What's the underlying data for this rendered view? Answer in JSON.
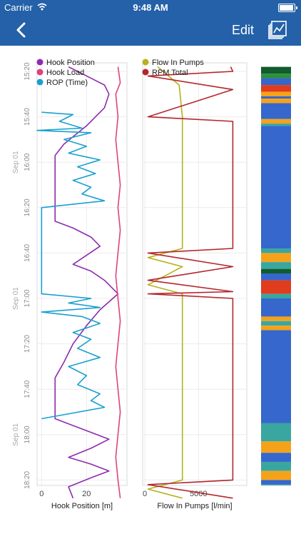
{
  "status_bar": {
    "carrier": "Carrier",
    "time": "9:48 AM",
    "battery_level": 0.95
  },
  "nav": {
    "back_icon": "chevron-left-icon",
    "edit_label": "Edit",
    "chart_icon": "chart-icon"
  },
  "colors": {
    "nav_bg": "#2461a8",
    "hook_position": "#8e2bb0",
    "hook_load": "#e0417f",
    "rop": "#1aa0cf",
    "flow_in": "#b5b21e",
    "rpm_total": "#b3262e"
  },
  "time_axis": {
    "ticks": [
      "15:20",
      "15:40",
      "16:00",
      "16:20",
      "16:40",
      "17:00",
      "17:20",
      "17:40",
      "18:00",
      "18:20"
    ],
    "date_labels": [
      {
        "text": "Sep 01",
        "at": "16:00"
      },
      {
        "text": "Sep 01",
        "at": "17:00"
      },
      {
        "text": "Sep 01",
        "at": "18:00"
      }
    ]
  },
  "chart_data": [
    {
      "type": "line",
      "xlabel": "Hook Position [m]",
      "xticks": [
        0,
        20
      ],
      "xlim": [
        -2,
        38
      ],
      "legend": [
        "Hook Position",
        "Hook Load",
        "ROP (Time)"
      ],
      "series": [
        {
          "name": "Hook Position",
          "points": [
            [
              12,
              "15:18"
            ],
            [
              28,
              "15:26"
            ],
            [
              30,
              "15:30"
            ],
            [
              28,
              "15:36"
            ],
            [
              24,
              "15:40"
            ],
            [
              20,
              "15:44"
            ],
            [
              15,
              "15:48"
            ],
            [
              10,
              "15:52"
            ],
            [
              6,
              "15:57"
            ],
            [
              6,
              "16:20"
            ],
            [
              6,
              "16:26"
            ],
            [
              14,
              "16:29"
            ],
            [
              22,
              "16:33"
            ],
            [
              26,
              "16:37"
            ],
            [
              20,
              "16:41"
            ],
            [
              14,
              "16:45"
            ],
            [
              22,
              "16:48"
            ],
            [
              28,
              "16:52"
            ],
            [
              34,
              "16:58"
            ],
            [
              26,
              "17:05"
            ],
            [
              20,
              "17:12"
            ],
            [
              14,
              "17:20"
            ],
            [
              10,
              "17:28"
            ],
            [
              6,
              "17:35"
            ],
            [
              6,
              "17:53"
            ],
            [
              14,
              "17:56"
            ],
            [
              22,
              "17:59"
            ],
            [
              30,
              "18:02"
            ],
            [
              22,
              "18:06"
            ],
            [
              12,
              "18:10"
            ],
            [
              22,
              "18:13"
            ],
            [
              30,
              "18:16"
            ],
            [
              22,
              "18:19"
            ],
            [
              12,
              "18:23"
            ],
            [
              14,
              "18:28"
            ]
          ]
        },
        {
          "name": "Hook Load",
          "points": [
            [
              34,
              "15:18"
            ],
            [
              35,
              "15:25"
            ],
            [
              33,
              "15:30"
            ],
            [
              34,
              "15:40"
            ],
            [
              33,
              "15:50"
            ],
            [
              34,
              "16:00"
            ],
            [
              35,
              "16:10"
            ],
            [
              34,
              "16:20"
            ],
            [
              35,
              "16:30"
            ],
            [
              34,
              "16:40"
            ],
            [
              33,
              "16:50"
            ],
            [
              34,
              "17:00"
            ],
            [
              35,
              "17:10"
            ],
            [
              34,
              "17:20"
            ],
            [
              33,
              "17:30"
            ],
            [
              34,
              "17:40"
            ],
            [
              35,
              "17:50"
            ],
            [
              34,
              "18:00"
            ],
            [
              33,
              "18:10"
            ],
            [
              34,
              "18:20"
            ],
            [
              35,
              "18:28"
            ]
          ]
        },
        {
          "name": "ROP (Time)",
          "points": [
            [
              0,
              "15:38"
            ],
            [
              14,
              "15:39"
            ],
            [
              8,
              "15:42"
            ],
            [
              18,
              "15:45"
            ],
            [
              -2,
              "15:46"
            ],
            [
              22,
              "15:47"
            ],
            [
              10,
              "15:50"
            ],
            [
              20,
              "15:53"
            ],
            [
              12,
              "15:56"
            ],
            [
              26,
              "15:59"
            ],
            [
              16,
              "16:02"
            ],
            [
              24,
              "16:05"
            ],
            [
              14,
              "16:08"
            ],
            [
              22,
              "16:11"
            ],
            [
              18,
              "16:14"
            ],
            [
              28,
              "16:17"
            ],
            [
              0,
              "16:20"
            ],
            [
              0,
              "16:58"
            ],
            [
              22,
              "17:00"
            ],
            [
              12,
              "17:02"
            ],
            [
              26,
              "17:04"
            ],
            [
              0,
              "17:06"
            ],
            [
              18,
              "17:08"
            ],
            [
              26,
              "17:11"
            ],
            [
              14,
              "17:15"
            ],
            [
              22,
              "17:18"
            ],
            [
              16,
              "17:22"
            ],
            [
              26,
              "17:26"
            ],
            [
              12,
              "17:30"
            ],
            [
              20,
              "17:34"
            ],
            [
              16,
              "17:38"
            ],
            [
              26,
              "17:42"
            ],
            [
              22,
              "17:45"
            ],
            [
              28,
              "17:48"
            ],
            [
              0,
              "17:53"
            ]
          ]
        }
      ]
    },
    {
      "type": "line",
      "xlabel": "Flow In Pumps [l/min]",
      "xticks": [
        0,
        5000
      ],
      "xlim": [
        -200,
        9500
      ],
      "legend": [
        "Flow In Pumps",
        "RPM Total"
      ],
      "series": [
        {
          "name": "Flow In Pumps",
          "points": [
            [
              1200,
              "15:18"
            ],
            [
              3200,
              "15:26"
            ],
            [
              3500,
              "15:40"
            ],
            [
              3500,
              "16:38"
            ],
            [
              300,
              "16:42"
            ],
            [
              3500,
              "16:46"
            ],
            [
              300,
              "16:54"
            ],
            [
              3500,
              "16:58"
            ],
            [
              3500,
              "18:20"
            ],
            [
              300,
              "18:24"
            ],
            [
              3500,
              "18:28"
            ]
          ]
        },
        {
          "name": "RPM Total",
          "points": [
            [
              8000,
              "15:18"
            ],
            [
              8200,
              "15:20"
            ],
            [
              300,
              "15:22"
            ],
            [
              8200,
              "15:28"
            ],
            [
              300,
              "15:40"
            ],
            [
              8200,
              "15:42"
            ],
            [
              8200,
              "16:38"
            ],
            [
              300,
              "16:40"
            ],
            [
              8200,
              "16:46"
            ],
            [
              300,
              "16:52"
            ],
            [
              8200,
              "16:57"
            ],
            [
              300,
              "16:58"
            ],
            [
              8200,
              "17:00"
            ],
            [
              8200,
              "18:20"
            ],
            [
              300,
              "18:22"
            ],
            [
              8200,
              "18:28"
            ]
          ]
        }
      ]
    },
    {
      "type": "heatmap",
      "title": "",
      "bands": [
        {
          "from": "15:18",
          "to": "15:21",
          "color": "#0f5c2e"
        },
        {
          "from": "15:21",
          "to": "15:23",
          "color": "#2e8f3b"
        },
        {
          "from": "15:23",
          "to": "15:26",
          "color": "#3667cc"
        },
        {
          "from": "15:26",
          "to": "15:29",
          "color": "#e03c1e"
        },
        {
          "from": "15:29",
          "to": "15:31",
          "color": "#f5a21b"
        },
        {
          "from": "15:31",
          "to": "15:32",
          "color": "#3667cc"
        },
        {
          "from": "15:32",
          "to": "15:34",
          "color": "#f5a21b"
        },
        {
          "from": "15:34",
          "to": "15:41",
          "color": "#3667cc"
        },
        {
          "from": "15:41",
          "to": "15:43",
          "color": "#f5a21b"
        },
        {
          "from": "15:43",
          "to": "15:44",
          "color": "#3aa6a0"
        },
        {
          "from": "15:44",
          "to": "16:38",
          "color": "#3667cc"
        },
        {
          "from": "16:38",
          "to": "16:40",
          "color": "#3aa6a0"
        },
        {
          "from": "16:40",
          "to": "16:44",
          "color": "#f5a21b"
        },
        {
          "from": "16:44",
          "to": "16:47",
          "color": "#3aa6a0"
        },
        {
          "from": "16:47",
          "to": "16:49",
          "color": "#0f5c2e"
        },
        {
          "from": "16:49",
          "to": "16:52",
          "color": "#3667cc"
        },
        {
          "from": "16:52",
          "to": "16:58",
          "color": "#e03c1e"
        },
        {
          "from": "16:58",
          "to": "17:00",
          "color": "#3aa6a0"
        },
        {
          "from": "17:00",
          "to": "17:08",
          "color": "#3667cc"
        },
        {
          "from": "17:08",
          "to": "17:10",
          "color": "#f5a21b"
        },
        {
          "from": "17:10",
          "to": "17:12",
          "color": "#3aa6a0"
        },
        {
          "from": "17:12",
          "to": "17:14",
          "color": "#f5a21b"
        },
        {
          "from": "17:14",
          "to": "17:55",
          "color": "#3667cc"
        },
        {
          "from": "17:55",
          "to": "18:03",
          "color": "#3aa6a0"
        },
        {
          "from": "18:03",
          "to": "18:08",
          "color": "#f5a21b"
        },
        {
          "from": "18:08",
          "to": "18:12",
          "color": "#3667cc"
        },
        {
          "from": "18:12",
          "to": "18:16",
          "color": "#3aa6a0"
        },
        {
          "from": "18:16",
          "to": "18:20",
          "color": "#f5a21b"
        },
        {
          "from": "18:20",
          "to": "18:22",
          "color": "#3667cc"
        },
        {
          "from": "18:22",
          "to": "18:25",
          "color": "#3aa6a0"
        },
        {
          "from": "18:25",
          "to": "18:27",
          "color": "#2e8f3b"
        },
        {
          "from": "18:27",
          "to": "18:28",
          "color": "#0f5c2e"
        }
      ]
    }
  ]
}
